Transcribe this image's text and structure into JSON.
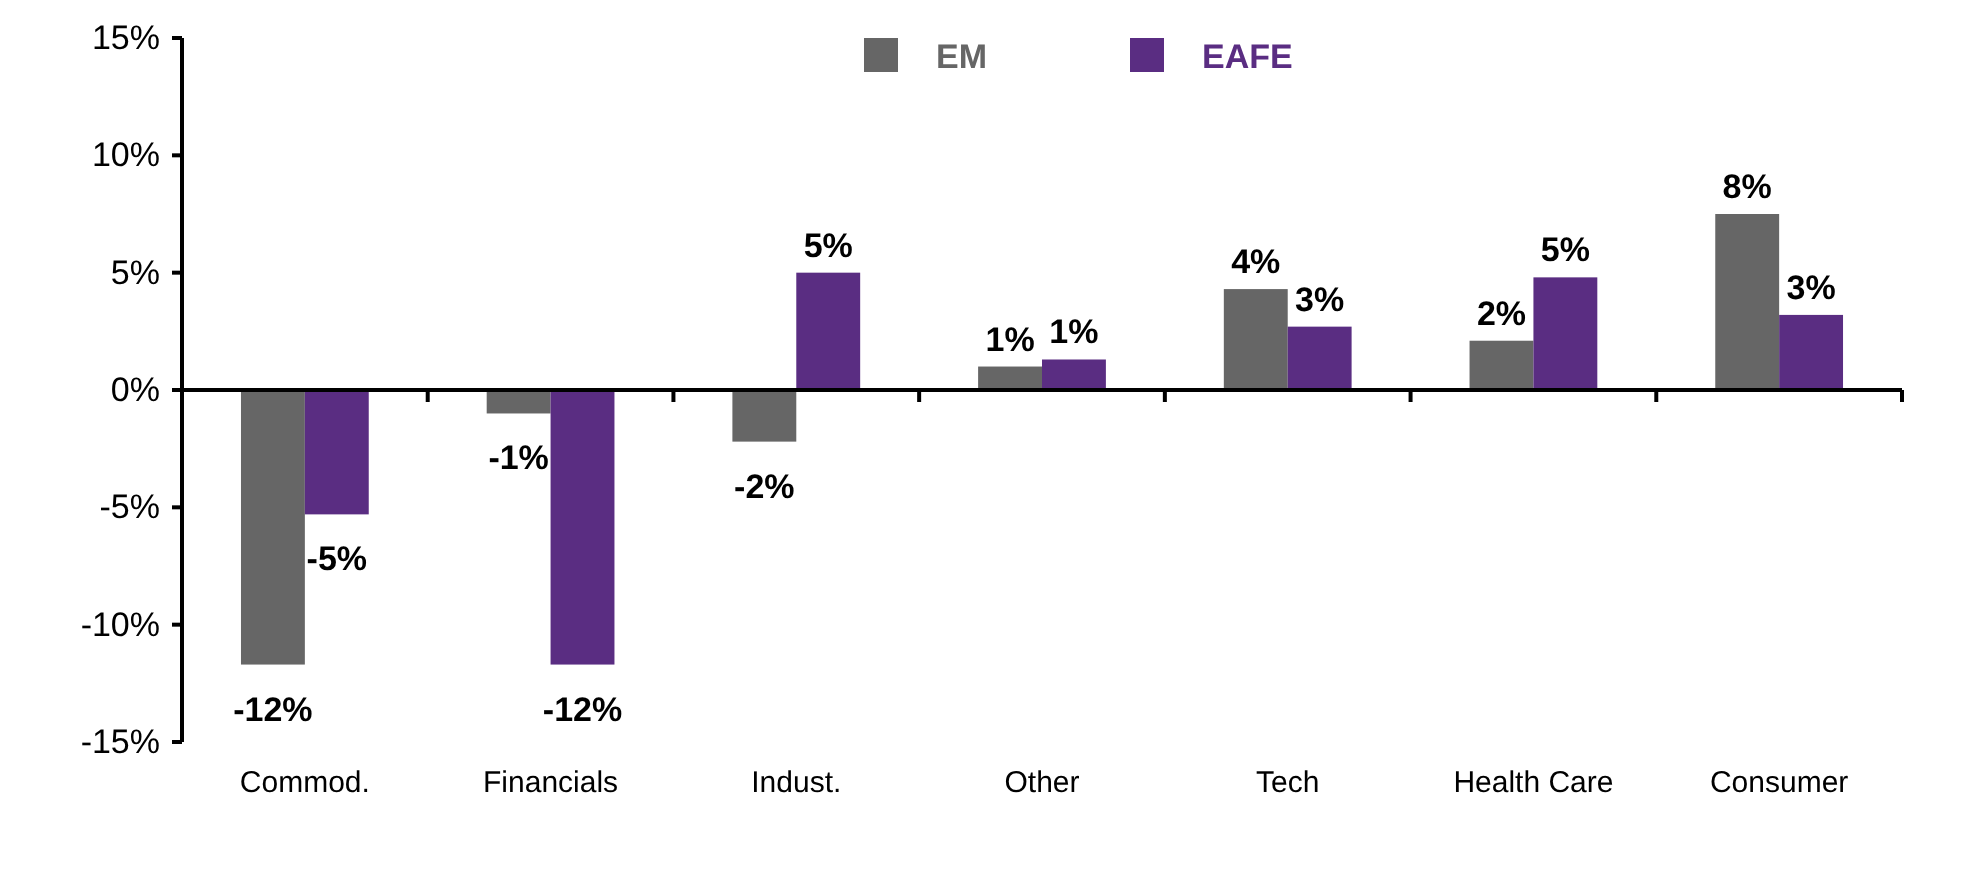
{
  "chart_data": {
    "type": "bar",
    "categories": [
      "Commod.",
      "Financials",
      "Indust.",
      "Other",
      "Tech",
      "Health Care",
      "Consumer"
    ],
    "series": [
      {
        "name": "EM",
        "color": "#666666",
        "values": [
          -11.7,
          -1.0,
          -2.2,
          1.0,
          4.3,
          2.1,
          7.5
        ],
        "value_labels": [
          "-12%",
          "-1%",
          "-2%",
          "1%",
          "4%",
          "2%",
          "8%"
        ]
      },
      {
        "name": "EAFE",
        "color": "#5a2d82",
        "values": [
          -5.3,
          -11.7,
          5.0,
          1.3,
          2.7,
          4.8,
          3.2
        ],
        "value_labels": [
          "-5%",
          "-12%",
          "5%",
          "1%",
          "3%",
          "5%",
          "3%"
        ]
      }
    ],
    "ylim": [
      -15,
      15
    ],
    "yticks": [
      {
        "value": -15,
        "label": "-15%"
      },
      {
        "value": -10,
        "label": "-10%"
      },
      {
        "value": -5,
        "label": "-5%"
      },
      {
        "value": 0,
        "label": "0%"
      },
      {
        "value": 5,
        "label": "5%"
      },
      {
        "value": 10,
        "label": "10%"
      },
      {
        "value": 15,
        "label": "15%"
      }
    ],
    "legend": "top"
  }
}
